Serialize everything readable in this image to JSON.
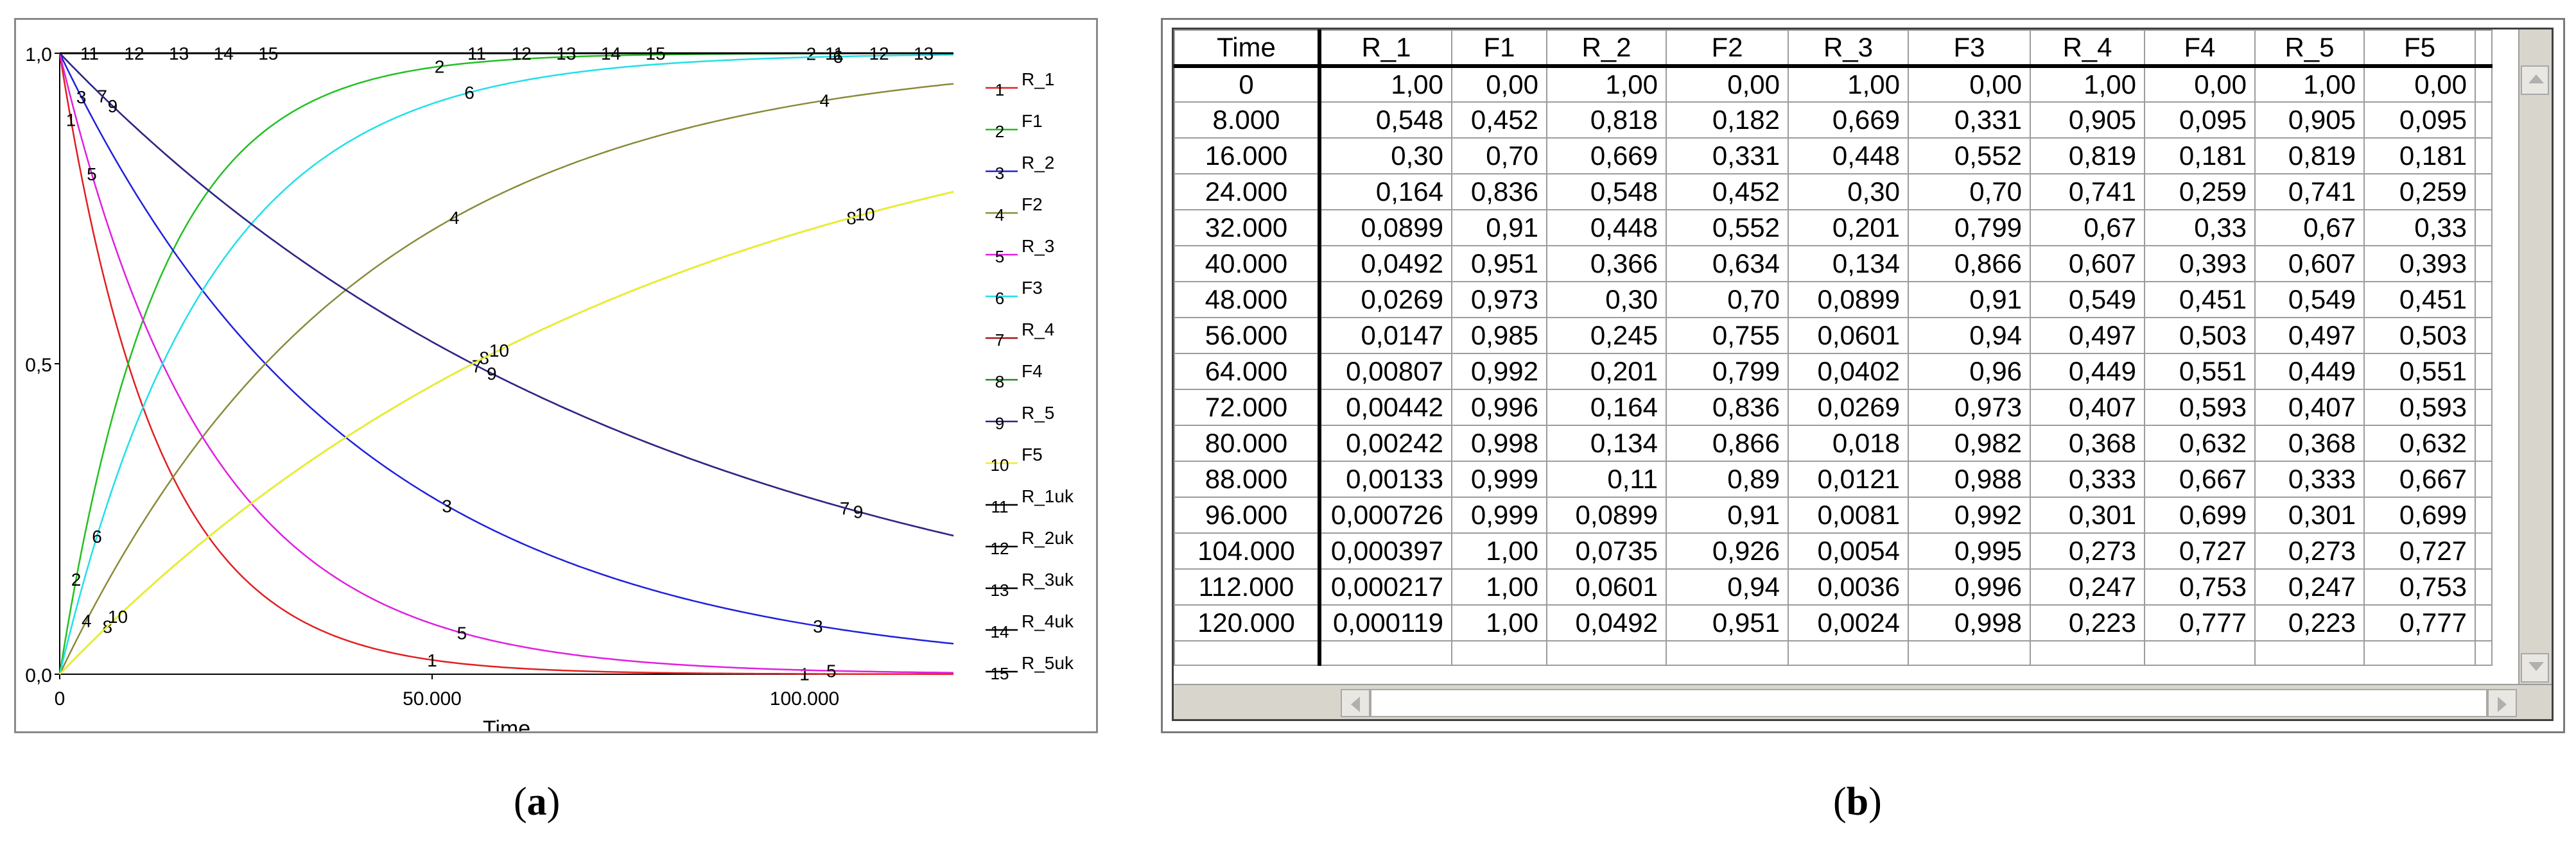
{
  "captions": {
    "a": "a",
    "b": "b"
  },
  "chart_data": {
    "type": "line",
    "xlabel": "Time",
    "ylabel": "",
    "xlim": [
      0,
      120000
    ],
    "ylim": [
      0,
      1
    ],
    "x_ticks": [
      0,
      50000,
      100000
    ],
    "x_tick_labels": [
      "0",
      "50.000",
      "100.000"
    ],
    "y_ticks": [
      0,
      0.5,
      1
    ],
    "y_tick_labels": [
      "0,0",
      "0,5",
      "1,0"
    ],
    "grid": false,
    "legend_position": "right",
    "series": [
      {
        "name": "R_1",
        "marker": "1",
        "color": "#e02020",
        "k": 7.55e-05
      },
      {
        "name": "F1",
        "marker": "2",
        "color": "#22c022",
        "k": 7.55e-05,
        "complement": true
      },
      {
        "name": "R_2",
        "marker": "3",
        "color": "#2020dc",
        "k": 2.51e-05
      },
      {
        "name": "F2",
        "marker": "4",
        "color": "#8a8a3a",
        "k": 2.51e-05,
        "complement": true
      },
      {
        "name": "R_3",
        "marker": "5",
        "color": "#e020e0",
        "k": 5.02e-05
      },
      {
        "name": "F3",
        "marker": "6",
        "color": "#20e0e8",
        "k": 5.02e-05,
        "complement": true
      },
      {
        "name": "R_4",
        "marker": "7",
        "color": "#a01818",
        "k": 1.25e-05
      },
      {
        "name": "F4",
        "marker": "8",
        "color": "#208a20",
        "k": 1.25e-05,
        "complement": true
      },
      {
        "name": "R_5",
        "marker": "9",
        "color": "#28288c",
        "k": 1.25e-05
      },
      {
        "name": "F5",
        "marker": "10",
        "color": "#f0f020",
        "k": 1.25e-05,
        "complement": true
      },
      {
        "name": "R_1uk",
        "marker": "11",
        "color": "#600000",
        "constant": 1
      },
      {
        "name": "R_2uk",
        "marker": "12",
        "color": "#006000",
        "constant": 1
      },
      {
        "name": "R_3uk",
        "marker": "13",
        "color": "#000060",
        "constant": 1
      },
      {
        "name": "R_4uk",
        "marker": "14",
        "color": "#505000",
        "constant": 1
      },
      {
        "name": "R_5uk",
        "marker": "15",
        "color": "#500050",
        "constant": 1
      }
    ]
  },
  "table": {
    "columns": [
      "Time",
      "R_1",
      "F1",
      "R_2",
      "F2",
      "R_3",
      "F3",
      "R_4",
      "F4",
      "R_5",
      "F5"
    ],
    "rows": [
      [
        "0",
        "1,00",
        "0,00",
        "1,00",
        "0,00",
        "1,00",
        "0,00",
        "1,00",
        "0,00",
        "1,00",
        "0,00"
      ],
      [
        "8.000",
        "0,548",
        "0,452",
        "0,818",
        "0,182",
        "0,669",
        "0,331",
        "0,905",
        "0,095",
        "0,905",
        "0,095"
      ],
      [
        "16.000",
        "0,30",
        "0,70",
        "0,669",
        "0,331",
        "0,448",
        "0,552",
        "0,819",
        "0,181",
        "0,819",
        "0,181"
      ],
      [
        "24.000",
        "0,164",
        "0,836",
        "0,548",
        "0,452",
        "0,30",
        "0,70",
        "0,741",
        "0,259",
        "0,741",
        "0,259"
      ],
      [
        "32.000",
        "0,0899",
        "0,91",
        "0,448",
        "0,552",
        "0,201",
        "0,799",
        "0,67",
        "0,33",
        "0,67",
        "0,33"
      ],
      [
        "40.000",
        "0,0492",
        "0,951",
        "0,366",
        "0,634",
        "0,134",
        "0,866",
        "0,607",
        "0,393",
        "0,607",
        "0,393"
      ],
      [
        "48.000",
        "0,0269",
        "0,973",
        "0,30",
        "0,70",
        "0,0899",
        "0,91",
        "0,549",
        "0,451",
        "0,549",
        "0,451"
      ],
      [
        "56.000",
        "0,0147",
        "0,985",
        "0,245",
        "0,755",
        "0,0601",
        "0,94",
        "0,497",
        "0,503",
        "0,497",
        "0,503"
      ],
      [
        "64.000",
        "0,00807",
        "0,992",
        "0,201",
        "0,799",
        "0,0402",
        "0,96",
        "0,449",
        "0,551",
        "0,449",
        "0,551"
      ],
      [
        "72.000",
        "0,00442",
        "0,996",
        "0,164",
        "0,836",
        "0,0269",
        "0,973",
        "0,407",
        "0,593",
        "0,407",
        "0,593"
      ],
      [
        "80.000",
        "0,00242",
        "0,998",
        "0,134",
        "0,866",
        "0,018",
        "0,982",
        "0,368",
        "0,632",
        "0,368",
        "0,632"
      ],
      [
        "88.000",
        "0,00133",
        "0,999",
        "0,11",
        "0,89",
        "0,0121",
        "0,988",
        "0,333",
        "0,667",
        "0,333",
        "0,667"
      ],
      [
        "96.000",
        "0,000726",
        "0,999",
        "0,0899",
        "0,91",
        "0,0081",
        "0,992",
        "0,301",
        "0,699",
        "0,301",
        "0,699"
      ],
      [
        "104.000",
        "0,000397",
        "1,00",
        "0,0735",
        "0,926",
        "0,0054",
        "0,995",
        "0,273",
        "0,727",
        "0,273",
        "0,727"
      ],
      [
        "112.000",
        "0,000217",
        "1,00",
        "0,0601",
        "0,94",
        "0,0036",
        "0,996",
        "0,247",
        "0,753",
        "0,247",
        "0,753"
      ],
      [
        "120.000",
        "0,000119",
        "1,00",
        "0,0492",
        "0,951",
        "0,0024",
        "0,998",
        "0,223",
        "0,777",
        "0,223",
        "0,777"
      ]
    ]
  }
}
